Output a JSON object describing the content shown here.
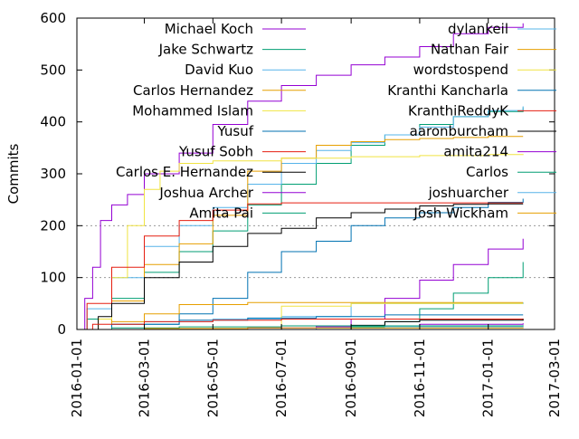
{
  "chart_data": {
    "type": "line",
    "title": "",
    "xlabel": "",
    "ylabel": "Commits",
    "x_axis": "date",
    "xlim": [
      "2016-01-01",
      "2017-03-01"
    ],
    "ylim": [
      0,
      600
    ],
    "x_ticks": [
      "2016-01-01",
      "2016-03-01",
      "2016-05-01",
      "2016-07-01",
      "2016-09-01",
      "2016-11-01",
      "2017-01-01",
      "2017-03-01"
    ],
    "y_ticks": [
      0,
      100,
      200,
      300,
      400,
      500,
      600
    ],
    "grid": "dotted horizontal lines at 100 and 200",
    "legend_placement": "inside, two columns, top",
    "series": [
      {
        "name": "Michael Koch",
        "color": "#9400d3",
        "points": [
          [
            "2016-01-01",
            0
          ],
          [
            "2016-01-08",
            60
          ],
          [
            "2016-01-15",
            120
          ],
          [
            "2016-01-22",
            210
          ],
          [
            "2016-02-01",
            240
          ],
          [
            "2016-02-15",
            260
          ],
          [
            "2016-03-01",
            300
          ],
          [
            "2016-04-01",
            340
          ],
          [
            "2016-05-01",
            395
          ],
          [
            "2016-06-01",
            440
          ],
          [
            "2016-07-01",
            470
          ],
          [
            "2016-08-01",
            490
          ],
          [
            "2016-09-01",
            510
          ],
          [
            "2016-10-01",
            525
          ],
          [
            "2016-11-01",
            545
          ],
          [
            "2016-12-01",
            570
          ],
          [
            "2017-01-01",
            582
          ],
          [
            "2017-02-01",
            590
          ]
        ]
      },
      {
        "name": "Jake Schwartz",
        "color": "#009e73",
        "points": [
          [
            "2016-01-01",
            0
          ],
          [
            "2016-01-10",
            20
          ],
          [
            "2016-02-01",
            60
          ],
          [
            "2016-03-01",
            110
          ],
          [
            "2016-04-01",
            150
          ],
          [
            "2016-05-01",
            190
          ],
          [
            "2016-06-01",
            240
          ],
          [
            "2016-07-01",
            280
          ],
          [
            "2016-08-01",
            320
          ],
          [
            "2016-09-01",
            355
          ],
          [
            "2016-10-01",
            375
          ],
          [
            "2016-11-01",
            395
          ],
          [
            "2016-12-01",
            410
          ],
          [
            "2017-01-01",
            420
          ],
          [
            "2017-02-01",
            428
          ]
        ]
      },
      {
        "name": "David Kuo",
        "color": "#56b4e9",
        "points": [
          [
            "2016-01-01",
            0
          ],
          [
            "2016-01-10",
            40
          ],
          [
            "2016-02-01",
            100
          ],
          [
            "2016-03-01",
            160
          ],
          [
            "2016-04-01",
            200
          ],
          [
            "2016-05-01",
            235
          ],
          [
            "2016-06-01",
            280
          ],
          [
            "2016-07-01",
            320
          ],
          [
            "2016-08-01",
            345
          ],
          [
            "2016-09-01",
            360
          ],
          [
            "2016-10-01",
            375
          ],
          [
            "2016-11-01",
            390
          ],
          [
            "2016-12-01",
            410
          ],
          [
            "2017-01-01",
            422
          ],
          [
            "2017-02-01",
            430
          ]
        ]
      },
      {
        "name": "Carlos Hernandez",
        "color": "#e69f00",
        "points": [
          [
            "2016-01-01",
            0
          ],
          [
            "2016-02-01",
            55
          ],
          [
            "2016-03-01",
            125
          ],
          [
            "2016-04-01",
            165
          ],
          [
            "2016-05-01",
            220
          ],
          [
            "2016-06-01",
            305
          ],
          [
            "2016-07-01",
            330
          ],
          [
            "2016-08-01",
            355
          ],
          [
            "2016-09-01",
            362
          ],
          [
            "2016-10-01",
            366
          ],
          [
            "2016-11-01",
            368
          ],
          [
            "2016-12-01",
            370
          ],
          [
            "2017-01-01",
            372
          ],
          [
            "2017-02-01",
            372
          ]
        ]
      },
      {
        "name": "Mohammed Islam",
        "color": "#f0e442",
        "points": [
          [
            "2016-01-01",
            0
          ],
          [
            "2016-01-20",
            20
          ],
          [
            "2016-02-01",
            100
          ],
          [
            "2016-02-15",
            200
          ],
          [
            "2016-03-01",
            270
          ],
          [
            "2016-03-15",
            305
          ],
          [
            "2016-04-01",
            320
          ],
          [
            "2016-05-01",
            325
          ],
          [
            "2016-07-01",
            330
          ],
          [
            "2016-09-01",
            333
          ],
          [
            "2016-11-01",
            335
          ],
          [
            "2017-01-01",
            337
          ],
          [
            "2017-02-01",
            338
          ]
        ]
      },
      {
        "name": "Yusuf",
        "color": "#0072b2",
        "points": [
          [
            "2016-01-01",
            0
          ],
          [
            "2016-03-01",
            10
          ],
          [
            "2016-04-01",
            30
          ],
          [
            "2016-05-01",
            60
          ],
          [
            "2016-06-01",
            110
          ],
          [
            "2016-07-01",
            150
          ],
          [
            "2016-08-01",
            170
          ],
          [
            "2016-09-01",
            200
          ],
          [
            "2016-10-01",
            215
          ],
          [
            "2016-11-01",
            225
          ],
          [
            "2016-12-01",
            235
          ],
          [
            "2017-01-01",
            245
          ],
          [
            "2017-02-01",
            252
          ]
        ]
      },
      {
        "name": "Yusuf Sobh",
        "color": "#e51e10",
        "points": [
          [
            "2016-01-01",
            0
          ],
          [
            "2016-01-10",
            50
          ],
          [
            "2016-02-01",
            120
          ],
          [
            "2016-03-01",
            180
          ],
          [
            "2016-04-01",
            210
          ],
          [
            "2016-05-01",
            230
          ],
          [
            "2016-06-01",
            242
          ],
          [
            "2016-07-01",
            244
          ],
          [
            "2016-09-01",
            244
          ],
          [
            "2016-11-01",
            244
          ],
          [
            "2017-01-01",
            244
          ],
          [
            "2017-02-01",
            244
          ]
        ]
      },
      {
        "name": "Carlos E. Hernandez",
        "color": "#000000",
        "points": [
          [
            "2016-01-01",
            0
          ],
          [
            "2016-01-20",
            25
          ],
          [
            "2016-02-01",
            50
          ],
          [
            "2016-03-01",
            100
          ],
          [
            "2016-04-01",
            130
          ],
          [
            "2016-05-01",
            160
          ],
          [
            "2016-06-01",
            185
          ],
          [
            "2016-07-01",
            195
          ],
          [
            "2016-08-01",
            215
          ],
          [
            "2016-09-01",
            225
          ],
          [
            "2016-10-01",
            232
          ],
          [
            "2016-11-01",
            238
          ],
          [
            "2016-12-01",
            241
          ],
          [
            "2017-01-01",
            242
          ],
          [
            "2017-02-01",
            242
          ]
        ]
      },
      {
        "name": "Joshua Archer",
        "color": "#9400d3",
        "points": [
          [
            "2016-01-01",
            0
          ],
          [
            "2016-07-01",
            0
          ],
          [
            "2016-08-01",
            5
          ],
          [
            "2016-09-01",
            20
          ],
          [
            "2016-10-01",
            60
          ],
          [
            "2016-11-01",
            95
          ],
          [
            "2016-12-01",
            125
          ],
          [
            "2017-01-01",
            155
          ],
          [
            "2017-02-01",
            175
          ]
        ]
      },
      {
        "name": "Amita Pai",
        "color": "#009e73",
        "points": [
          [
            "2016-01-01",
            0
          ],
          [
            "2016-08-01",
            0
          ],
          [
            "2016-09-01",
            5
          ],
          [
            "2016-10-01",
            15
          ],
          [
            "2016-11-01",
            40
          ],
          [
            "2016-12-01",
            70
          ],
          [
            "2017-01-01",
            100
          ],
          [
            "2017-02-01",
            130
          ]
        ]
      },
      {
        "name": "dylankeil",
        "color": "#56b4e9",
        "points": [
          [
            "2016-01-01",
            0
          ],
          [
            "2016-02-01",
            10
          ],
          [
            "2016-03-01",
            15
          ],
          [
            "2016-05-01",
            20
          ],
          [
            "2016-07-01",
            25
          ],
          [
            "2016-09-01",
            50
          ],
          [
            "2017-02-01",
            52
          ]
        ]
      },
      {
        "name": "Nathan Fair",
        "color": "#e69f00",
        "points": [
          [
            "2016-01-01",
            0
          ],
          [
            "2016-02-01",
            15
          ],
          [
            "2016-03-01",
            30
          ],
          [
            "2016-04-01",
            48
          ],
          [
            "2016-06-01",
            52
          ],
          [
            "2017-02-01",
            52
          ]
        ]
      },
      {
        "name": "wordstospend",
        "color": "#f0e442",
        "points": [
          [
            "2016-01-01",
            0
          ],
          [
            "2016-06-01",
            0
          ],
          [
            "2016-07-01",
            45
          ],
          [
            "2016-09-01",
            50
          ],
          [
            "2017-02-01",
            50
          ]
        ]
      },
      {
        "name": "Kranthi Kancharla",
        "color": "#0072b2",
        "points": [
          [
            "2016-01-01",
            0
          ],
          [
            "2016-02-01",
            10
          ],
          [
            "2016-04-01",
            18
          ],
          [
            "2016-06-01",
            22
          ],
          [
            "2016-08-01",
            25
          ],
          [
            "2016-10-01",
            28
          ],
          [
            "2017-02-01",
            28
          ]
        ]
      },
      {
        "name": "KranthiReddyK",
        "color": "#e51e10",
        "points": [
          [
            "2016-01-01",
            0
          ],
          [
            "2016-01-15",
            10
          ],
          [
            "2016-03-01",
            15
          ],
          [
            "2016-05-01",
            18
          ],
          [
            "2016-07-01",
            20
          ],
          [
            "2017-02-01",
            21
          ]
        ]
      },
      {
        "name": "aaronburcham",
        "color": "#000000",
        "points": [
          [
            "2016-01-01",
            0
          ],
          [
            "2016-08-01",
            0
          ],
          [
            "2016-09-01",
            8
          ],
          [
            "2016-10-01",
            15
          ],
          [
            "2016-11-01",
            18
          ],
          [
            "2017-02-01",
            20
          ]
        ]
      },
      {
        "name": "amita214",
        "color": "#9400d3",
        "points": [
          [
            "2016-01-01",
            0
          ],
          [
            "2016-05-01",
            0
          ],
          [
            "2016-06-01",
            3
          ],
          [
            "2016-08-01",
            7
          ],
          [
            "2016-11-01",
            10
          ],
          [
            "2017-02-01",
            12
          ]
        ]
      },
      {
        "name": "Carlos",
        "color": "#009e73",
        "points": [
          [
            "2016-01-01",
            0
          ],
          [
            "2016-02-01",
            3
          ],
          [
            "2016-04-01",
            5
          ],
          [
            "2016-07-01",
            7
          ],
          [
            "2017-02-01",
            8
          ]
        ]
      },
      {
        "name": "joshuarcher",
        "color": "#56b4e9",
        "points": [
          [
            "2016-01-01",
            0
          ],
          [
            "2016-07-01",
            0
          ],
          [
            "2016-08-01",
            3
          ],
          [
            "2016-10-01",
            5
          ],
          [
            "2017-02-01",
            6
          ]
        ]
      },
      {
        "name": "Josh Wickham",
        "color": "#e69f00",
        "points": [
          [
            "2016-01-01",
            0
          ],
          [
            "2016-03-01",
            2
          ],
          [
            "2016-06-01",
            3
          ],
          [
            "2017-02-01",
            4
          ]
        ]
      }
    ]
  }
}
